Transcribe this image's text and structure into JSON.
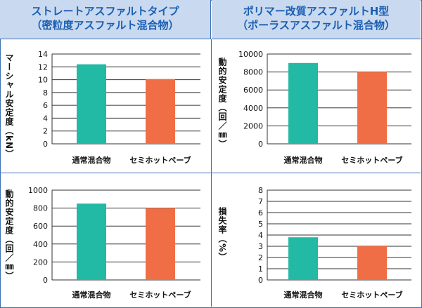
{
  "headers": {
    "left": {
      "line1": "ストレートアスファルトタイプ",
      "line2": "（密粒度アスファルト混合物）"
    },
    "right": {
      "line1": "ポリマー改質アスファルトH型",
      "line2": "（ポーラスアスファルト混合物）"
    }
  },
  "colors": {
    "series1": "#22b9a5",
    "series2": "#f06e45",
    "accent": "#1a5fb4",
    "header_bg": "#c9d9ef"
  },
  "chart_data": [
    {
      "type": "bar",
      "ylabel": "マーシャル安定度（kN）",
      "categories": [
        "通常混合物",
        "セミホットペーブ"
      ],
      "values": [
        12.4,
        10.1
      ],
      "ylim": [
        0,
        14
      ],
      "yticks": [
        0,
        2,
        4,
        6,
        8,
        10,
        12,
        14
      ],
      "grid": true
    },
    {
      "type": "bar",
      "ylabel": "動的安定度（回／㎜）",
      "categories": [
        "通常混合物",
        "セミホットペーブ"
      ],
      "values": [
        9000,
        8000
      ],
      "ylim": [
        0,
        10000
      ],
      "yticks": [
        0,
        2000,
        4000,
        6000,
        8000,
        10000
      ],
      "grid": true
    },
    {
      "type": "bar",
      "ylabel": "動的安定度（回／㎜）",
      "categories": [
        "通常混合物",
        "セミホットペーブ"
      ],
      "values": [
        850,
        800
      ],
      "ylim": [
        0,
        1000
      ],
      "yticks": [
        0,
        200,
        400,
        600,
        800,
        1000
      ],
      "grid": true
    },
    {
      "type": "bar",
      "ylabel": "損失率（%）",
      "categories": [
        "通常混合物",
        "セミホットペーブ"
      ],
      "values": [
        3.8,
        3.0
      ],
      "ylim": [
        0,
        8
      ],
      "yticks": [
        0,
        1,
        2,
        3,
        4,
        5,
        6,
        7,
        8
      ],
      "grid": true
    }
  ]
}
